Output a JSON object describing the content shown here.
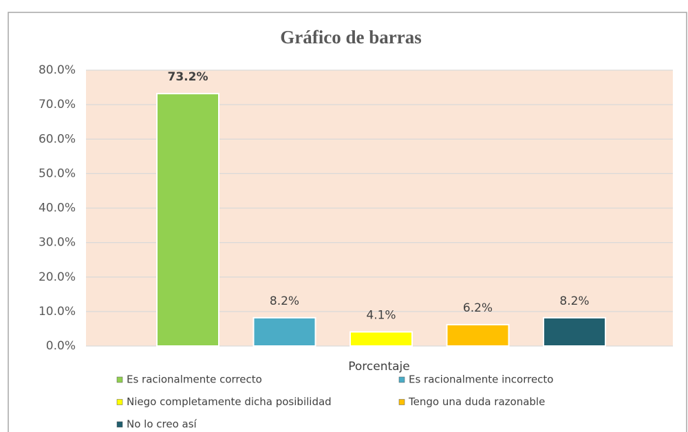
{
  "chart_data": {
    "type": "bar",
    "title": "Gráfico de barras",
    "categories": [
      "Porcentaje"
    ],
    "series": [
      {
        "name": "Es racionalmente correcto",
        "color": "#92d050",
        "values": [
          73.2
        ],
        "value_labels": [
          "73.2%"
        ]
      },
      {
        "name": "Es racionalmente incorrecto",
        "color": "#4bacc6",
        "values": [
          8.2
        ],
        "value_labels": [
          "8.2%"
        ]
      },
      {
        "name": "Niego completamente dicha posibilidad",
        "color": "#ffff00",
        "values": [
          4.1
        ],
        "value_labels": [
          "4.1%"
        ]
      },
      {
        "name": "Tengo una duda razonable",
        "color": "#ffc000",
        "values": [
          6.2
        ],
        "value_labels": [
          "6.2%"
        ]
      },
      {
        "name": "No lo creo así",
        "color": "#215f6e",
        "values": [
          8.2
        ],
        "value_labels": [
          "8.2%"
        ]
      }
    ],
    "ylim": [
      0,
      80
    ],
    "yticks": [
      {
        "value": 0,
        "label": "0.0%"
      },
      {
        "value": 10,
        "label": "10.0%"
      },
      {
        "value": 20,
        "label": "20.0%"
      },
      {
        "value": 30,
        "label": "30.0%"
      },
      {
        "value": 40,
        "label": "40.0%"
      },
      {
        "value": 50,
        "label": "50.0%"
      },
      {
        "value": 60,
        "label": "60.0%"
      },
      {
        "value": 70,
        "label": "70.0%"
      },
      {
        "value": 80,
        "label": "80.0%"
      }
    ],
    "grid": true
  }
}
